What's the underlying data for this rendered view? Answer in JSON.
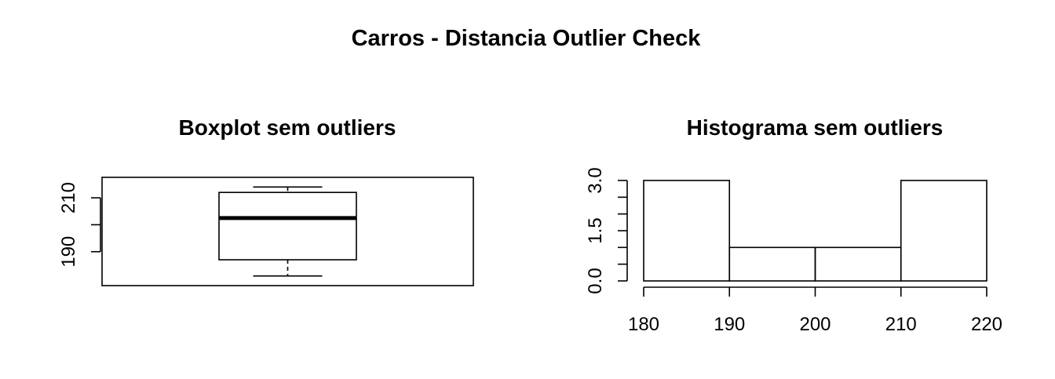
{
  "title": "Carros - Distancia Outlier Check",
  "chart_data": [
    {
      "type": "boxplot",
      "title": "Boxplot sem outliers",
      "orientation": "vertical",
      "ylim": [
        177.4,
        217.6
      ],
      "yticks": [
        190,
        200,
        210
      ],
      "ytick_labels": [
        "190",
        "",
        "210"
      ],
      "stats": {
        "min": 181,
        "q1": 187,
        "median": 202.5,
        "q3": 212,
        "max": 214
      }
    },
    {
      "type": "histogram",
      "title": "Histograma sem outliers",
      "bins": [
        [
          180,
          190
        ],
        [
          190,
          200
        ],
        [
          200,
          210
        ],
        [
          210,
          220
        ]
      ],
      "counts": [
        3,
        1,
        1,
        3
      ],
      "xlim": [
        180,
        220
      ],
      "ylim": [
        0,
        3
      ],
      "xticks": [
        "180",
        "190",
        "200",
        "210",
        "220"
      ],
      "yticks": [
        0,
        1.5,
        3
      ],
      "ytick_labels": [
        "0.0",
        "1.5",
        "3.0"
      ],
      "minor_yticks": [
        0.5,
        1,
        2,
        2.5
      ]
    }
  ]
}
